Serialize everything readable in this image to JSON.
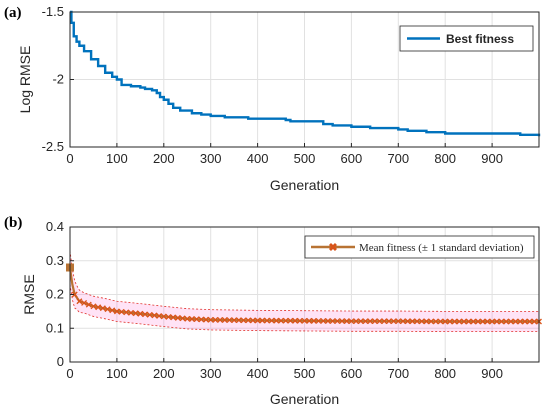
{
  "chart_data": [
    {
      "type": "line",
      "panel_label": "(a)",
      "xlabel": "Generation",
      "ylabel": "Log RMSE",
      "xlim": [
        0,
        1000
      ],
      "ylim": [
        -2.5,
        -1.5
      ],
      "xticks": [
        0,
        100,
        200,
        300,
        400,
        500,
        600,
        700,
        800,
        900
      ],
      "xtick_labels": [
        "0",
        "100",
        "200",
        "300",
        "400",
        "500",
        "600",
        "700",
        "800",
        "900"
      ],
      "yticks": [
        -2.5,
        -2,
        -1.5
      ],
      "ytick_labels": [
        "-2.5",
        "-2",
        "-1.5"
      ],
      "grid": true,
      "legend_position": "top-right",
      "series": [
        {
          "name": "Best fitness",
          "color": "#0072BD",
          "x": [
            0,
            3,
            8,
            14,
            20,
            30,
            45,
            60,
            75,
            90,
            100,
            110,
            130,
            150,
            160,
            175,
            185,
            192,
            200,
            210,
            220,
            235,
            260,
            280,
            300,
            330,
            350,
            380,
            420,
            460,
            470,
            500,
            540,
            560,
            600,
            640,
            700,
            720,
            760,
            800,
            850,
            900,
            960,
            980,
            1000
          ],
          "y": [
            -1.5,
            -1.58,
            -1.68,
            -1.72,
            -1.75,
            -1.79,
            -1.85,
            -1.9,
            -1.95,
            -1.98,
            -2.0,
            -2.04,
            -2.05,
            -2.06,
            -2.07,
            -2.08,
            -2.1,
            -2.13,
            -2.15,
            -2.18,
            -2.21,
            -2.23,
            -2.25,
            -2.26,
            -2.27,
            -2.28,
            -2.28,
            -2.29,
            -2.29,
            -2.3,
            -2.31,
            -2.31,
            -2.33,
            -2.34,
            -2.35,
            -2.36,
            -2.37,
            -2.38,
            -2.39,
            -2.4,
            -2.4,
            -2.4,
            -2.41,
            -2.41,
            -2.42
          ]
        }
      ]
    },
    {
      "type": "line",
      "panel_label": "(b)",
      "xlabel": "Generation",
      "ylabel": "RMSE",
      "xlim": [
        0,
        1000
      ],
      "ylim": [
        0,
        0.4
      ],
      "xticks": [
        0,
        100,
        200,
        300,
        400,
        500,
        600,
        700,
        800,
        900
      ],
      "xtick_labels": [
        "0",
        "100",
        "200",
        "300",
        "400",
        "500",
        "600",
        "700",
        "800",
        "900"
      ],
      "yticks": [
        0,
        0.1,
        0.2,
        0.3,
        0.4
      ],
      "ytick_labels": [
        "0",
        "0.1",
        "0.2",
        "0.3",
        "0.4"
      ],
      "grid": true,
      "legend_position": "top-right",
      "series": [
        {
          "name": "Mean fitness (± 1 standard deviation)",
          "color": "#B87333",
          "marker_color": "#D95319",
          "band_color": "#FF66CC",
          "x": [
            0,
            5,
            10,
            15,
            20,
            30,
            50,
            75,
            100,
            150,
            200,
            250,
            300,
            400,
            500,
            600,
            700,
            800,
            900,
            1000
          ],
          "y": [
            0.28,
            0.23,
            0.2,
            0.19,
            0.18,
            0.175,
            0.165,
            0.158,
            0.15,
            0.143,
            0.135,
            0.128,
            0.125,
            0.123,
            0.122,
            0.121,
            0.121,
            0.12,
            0.12,
            0.12
          ],
          "std": [
            0.05,
            0.045,
            0.04,
            0.035,
            0.033,
            0.03,
            0.03,
            0.03,
            0.03,
            0.03,
            0.03,
            0.03,
            0.03,
            0.03,
            0.03,
            0.03,
            0.03,
            0.03,
            0.03,
            0.03
          ]
        }
      ]
    }
  ]
}
